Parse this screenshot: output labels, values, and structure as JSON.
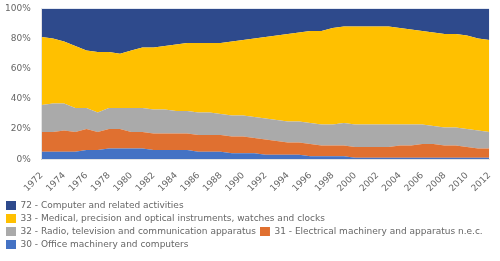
{
  "chart_data": {
    "type": "area",
    "stacked": true,
    "x": [
      1972,
      1973,
      1974,
      1975,
      1976,
      1977,
      1978,
      1979,
      1980,
      1981,
      1982,
      1983,
      1984,
      1985,
      1986,
      1987,
      1988,
      1989,
      1990,
      1991,
      1992,
      1993,
      1994,
      1995,
      1996,
      1997,
      1998,
      1999,
      2000,
      2001,
      2002,
      2003,
      2004,
      2005,
      2006,
      2007,
      2008,
      2009,
      2010,
      2011,
      2012
    ],
    "series": [
      {
        "name": "30 - Office machinery and computers",
        "color": "#4472C4",
        "values": [
          5,
          5,
          5,
          5,
          6,
          6,
          7,
          7,
          7,
          7,
          6,
          6,
          6,
          6,
          5,
          5,
          5,
          4,
          4,
          4,
          3,
          3,
          3,
          3,
          2,
          2,
          2,
          2,
          1,
          1,
          1,
          1,
          1,
          1,
          1,
          1,
          1,
          1,
          1,
          1,
          1
        ]
      },
      {
        "name": "31 - Electrical machinery and apparatus n.e.c.",
        "color": "#E07030",
        "values": [
          13,
          13,
          14,
          13,
          14,
          12,
          13,
          13,
          11,
          11,
          11,
          11,
          11,
          11,
          11,
          11,
          11,
          11,
          11,
          10,
          10,
          9,
          8,
          8,
          8,
          7,
          7,
          7,
          7,
          7,
          7,
          7,
          8,
          8,
          9,
          9,
          8,
          8,
          7,
          6,
          6
        ]
      },
      {
        "name": "32 - Radio, television and communication apparatus",
        "color": "#AAAAAA",
        "values": [
          18,
          19,
          18,
          16,
          14,
          13,
          14,
          14,
          16,
          16,
          16,
          16,
          15,
          15,
          15,
          15,
          14,
          14,
          14,
          14,
          14,
          14,
          14,
          14,
          14,
          14,
          14,
          15,
          15,
          15,
          15,
          15,
          14,
          14,
          13,
          12,
          12,
          12,
          12,
          12,
          11
        ]
      },
      {
        "name": "33 - Medical, precision and optical instruments, watches and clocks",
        "color": "#FFC000",
        "values": [
          45,
          43,
          41,
          41,
          38,
          40,
          37,
          36,
          38,
          40,
          41,
          42,
          44,
          45,
          46,
          46,
          47,
          49,
          50,
          52,
          54,
          56,
          58,
          59,
          61,
          62,
          64,
          64,
          65,
          65,
          65,
          65,
          64,
          63,
          62,
          62,
          62,
          62,
          62,
          61,
          61
        ]
      },
      {
        "name": "72 - Computer and related activities",
        "color": "#2E4A8C",
        "values": [
          19,
          20,
          22,
          25,
          28,
          29,
          29,
          30,
          28,
          26,
          26,
          25,
          24,
          23,
          23,
          23,
          23,
          22,
          21,
          20,
          19,
          18,
          17,
          16,
          15,
          15,
          13,
          12,
          12,
          12,
          12,
          12,
          13,
          14,
          15,
          16,
          17,
          17,
          18,
          20,
          21
        ]
      }
    ],
    "xlim": [
      1972,
      2012
    ],
    "xticks": [
      1972,
      1974,
      1976,
      1978,
      1980,
      1982,
      1984,
      1986,
      1988,
      1990,
      1992,
      1994,
      1996,
      1998,
      2000,
      2002,
      2004,
      2006,
      2008,
      2010,
      2012
    ],
    "ylim": [
      0,
      100
    ],
    "yticks": [
      {
        "value": 0,
        "label": "0%"
      },
      {
        "value": 20,
        "label": "20%"
      },
      {
        "value": 40,
        "label": "40%"
      },
      {
        "value": 60,
        "label": "60%"
      },
      {
        "value": 80,
        "label": "80%"
      },
      {
        "value": 100,
        "label": "100%"
      }
    ],
    "grid": false,
    "legend": "bottom"
  }
}
